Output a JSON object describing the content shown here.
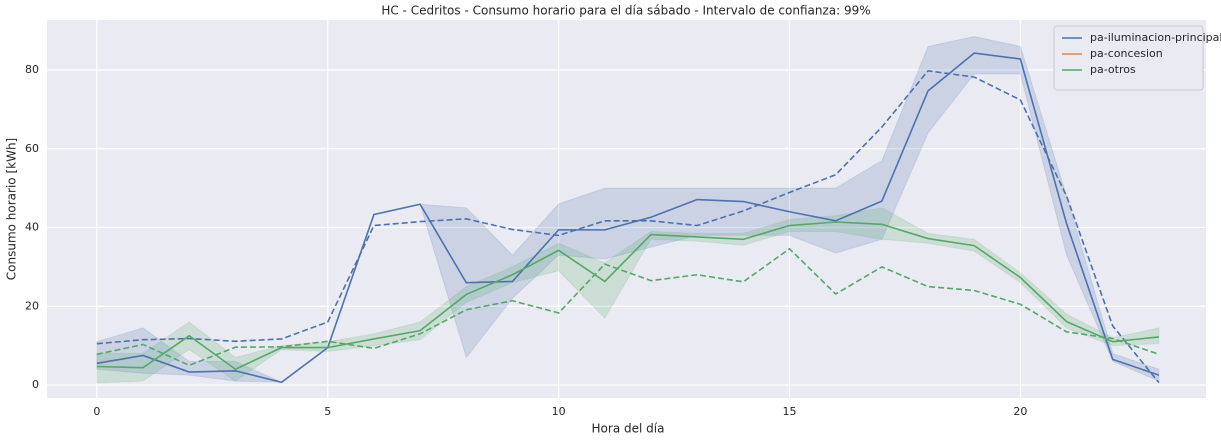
{
  "chart_data": {
    "type": "line",
    "title": "HC - Cedritos - Consumo horario para el día sábado - Intervalo de confianza: 99%",
    "x_label": "Hora del día",
    "y_label": "Consumo horario [kWh]",
    "x": [
      0,
      1,
      2,
      3,
      4,
      5,
      6,
      7,
      8,
      9,
      10,
      11,
      12,
      13,
      14,
      15,
      16,
      17,
      18,
      19,
      20,
      21,
      22,
      23
    ],
    "series": [
      {
        "name": "pa-iluminacion-principal",
        "color": "#4c72b0",
        "values": [
          5.5,
          7.5,
          3.3,
          3.6,
          0.7,
          9.5,
          43.3,
          45.9,
          26,
          26.3,
          39.4,
          39.4,
          42.6,
          47.1,
          46.6,
          44,
          41.7,
          46.7,
          74.7,
          84.3,
          82.8,
          41,
          6.5,
          2.5
        ],
        "ci_low": [
          4,
          3,
          2.5,
          1,
          0.7,
          9.5,
          43.3,
          45.9,
          7,
          22,
          33,
          32,
          35,
          38,
          38,
          38,
          33.5,
          37,
          64,
          79,
          79,
          33,
          6,
          1
        ],
        "ci_high": [
          11,
          14.5,
          6,
          6,
          0.7,
          9.5,
          43.3,
          45.9,
          45,
          33,
          46,
          50,
          50,
          50,
          50,
          50,
          50,
          57,
          86,
          88.5,
          86,
          48,
          8,
          4
        ]
      },
      {
        "name": "pa-concesion",
        "color": "#dd8452",
        "values": [
          null,
          null,
          null,
          null,
          null,
          null,
          null,
          null,
          null,
          null,
          null,
          null,
          null,
          null,
          null,
          null,
          null,
          null,
          null,
          null,
          null,
          null,
          null,
          null
        ]
      },
      {
        "name": "pa-otros",
        "color": "#55a868",
        "values": [
          4.7,
          4.4,
          12.5,
          4,
          9.5,
          9.5,
          11.7,
          13.8,
          23,
          28,
          34.2,
          26.3,
          38.2,
          37.6,
          37,
          40.5,
          41.4,
          40.8,
          37.2,
          35.4,
          27.3,
          16.1,
          11,
          12.2
        ],
        "ci_low": [
          0.5,
          1,
          9,
          1,
          9,
          8.5,
          10,
          11.5,
          21,
          26,
          29,
          17,
          37,
          36.5,
          35.5,
          39,
          39,
          37,
          36,
          34,
          26,
          14.5,
          10,
          10.5
        ],
        "ci_high": [
          8,
          8,
          16,
          7,
          10,
          11,
          13,
          16,
          25,
          30,
          36,
          31,
          39,
          38.5,
          38.5,
          42,
          43,
          45,
          38.5,
          37,
          28.5,
          18,
          12,
          14.5
        ]
      }
    ],
    "dashed_series": [
      {
        "color": "#4c72b0",
        "values": [
          10.5,
          11.5,
          11.8,
          11.1,
          11.7,
          16,
          40.5,
          41.5,
          42.2,
          39.5,
          38,
          41.7,
          41.7,
          40.5,
          44.2,
          48.9,
          53.4,
          65.5,
          79.8,
          78.2,
          72.4,
          48,
          15,
          0.6
        ]
      },
      {
        "color": "#55a868",
        "values": [
          7.8,
          10.3,
          5,
          9.6,
          9.7,
          11.1,
          9.3,
          13,
          19.1,
          21.4,
          18.3,
          30.7,
          26.5,
          28,
          26.2,
          34.6,
          23.1,
          30,
          25,
          24,
          20.5,
          13.5,
          11.8,
          7.8
        ]
      }
    ],
    "xlim": [
      -1.08,
      24.02
    ],
    "ylim": [
      -3.3,
      92.7
    ],
    "xticks": [
      0,
      5,
      10,
      15,
      20
    ],
    "yticks": [
      0,
      20,
      40,
      60,
      80
    ],
    "grid": true,
    "legend": "upper right"
  }
}
